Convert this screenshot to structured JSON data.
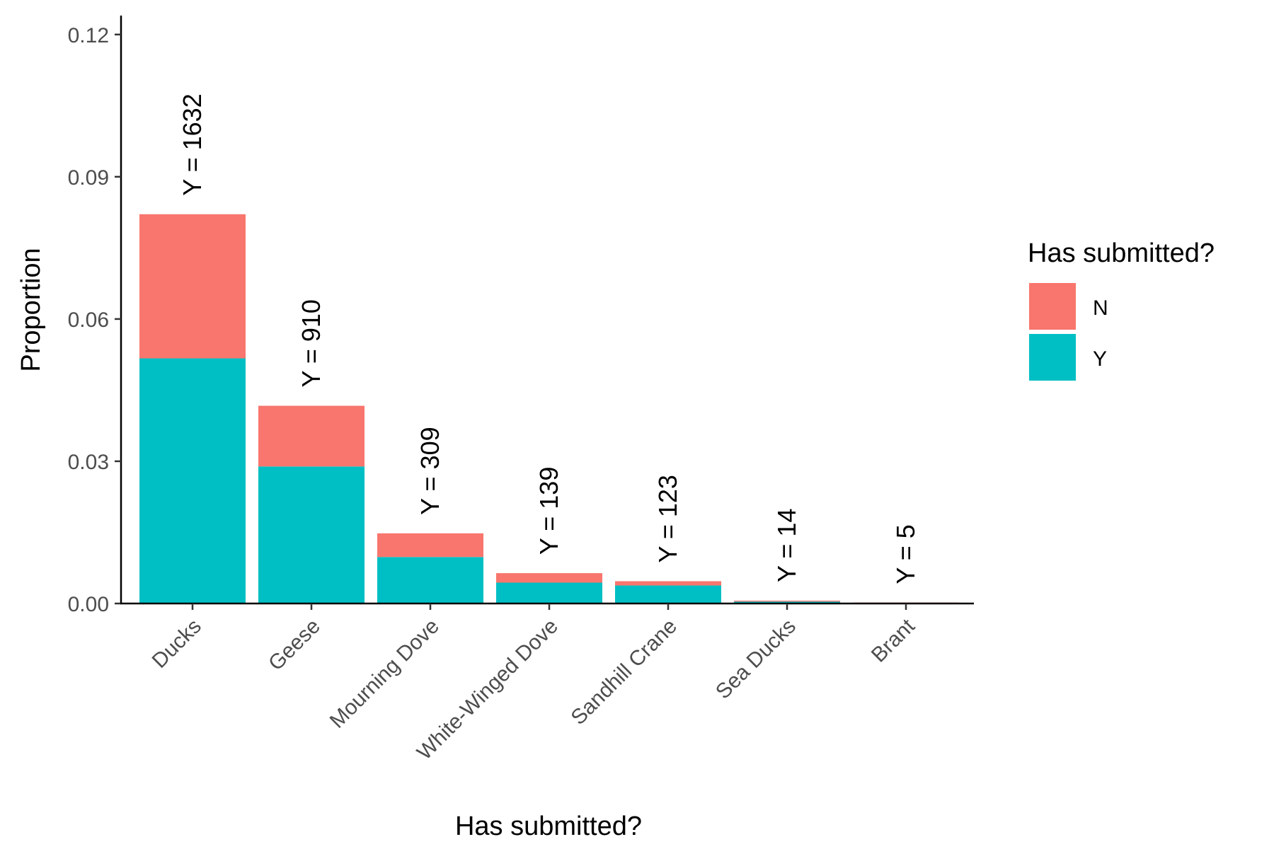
{
  "chart_data": {
    "type": "bar",
    "stacked": true,
    "categories": [
      "Ducks",
      "Geese",
      "Mourning Dove",
      "White-Winged Dove",
      "Sandhill Crane",
      "Sea Ducks",
      "Brant"
    ],
    "series": [
      {
        "name": "Y",
        "color": "#00BFC4",
        "values": [
          0.0517,
          0.0289,
          0.0098,
          0.0044,
          0.0038,
          0.0004,
          0.0001
        ]
      },
      {
        "name": "N",
        "color": "#F8766D",
        "values": [
          0.0304,
          0.0128,
          0.005,
          0.002,
          0.0009,
          0.0002,
          0.0001
        ]
      }
    ],
    "bar_labels": [
      "Y = 1632",
      "Y = 910",
      "Y = 309",
      "Y = 139",
      "Y = 123",
      "Y = 14",
      "Y = 5"
    ],
    "xlabel": "Has submitted?",
    "ylabel": "Proportion",
    "ylim": [
      0,
      0.12
    ],
    "yticks": [
      "0.00",
      "0.03",
      "0.06",
      "0.09",
      "0.12"
    ],
    "ytick_values": [
      0,
      0.03,
      0.06,
      0.09,
      0.12
    ],
    "x_tick_rotation": "45°",
    "grid": false,
    "legend": {
      "title": "Has submitted?",
      "placement": "right",
      "entries": [
        {
          "label": "N",
          "color": "#F8766D"
        },
        {
          "label": "Y",
          "color": "#00BFC4"
        }
      ]
    }
  }
}
